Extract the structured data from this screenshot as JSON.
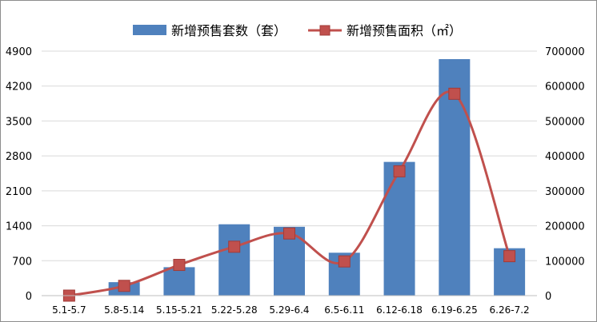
{
  "chart_data": {
    "type": "bar",
    "categories": [
      "5.1-5.7",
      "5.8-5.14",
      "5.15-5.21",
      "5.22-5.28",
      "5.29-6.4",
      "6.5-6.11",
      "6.12-6.18",
      "6.19-6.25",
      "6.26-7.2"
    ],
    "series": [
      {
        "name": "新增预售套数（套）",
        "type": "bar",
        "axis": "left",
        "color": "#4f81bd",
        "values": [
          0,
          270,
          570,
          1430,
          1380,
          860,
          2680,
          4740,
          950
        ]
      },
      {
        "name": "新增预售面积（㎡）",
        "type": "line",
        "axis": "right",
        "color": "#c0504d",
        "values": [
          0,
          28000,
          88000,
          140000,
          178000,
          98000,
          356000,
          578000,
          113000
        ]
      }
    ],
    "y_left": {
      "min": 0,
      "max": 4900,
      "ticks": [
        "0",
        "700",
        "1400",
        "2100",
        "2800",
        "3500",
        "4200",
        "4900"
      ]
    },
    "y_right": {
      "min": 0,
      "max": 700000,
      "ticks": [
        "0",
        "100000",
        "200000",
        "300000",
        "400000",
        "500000",
        "600000",
        "700000"
      ]
    },
    "grid": true,
    "legend_position": "top"
  }
}
